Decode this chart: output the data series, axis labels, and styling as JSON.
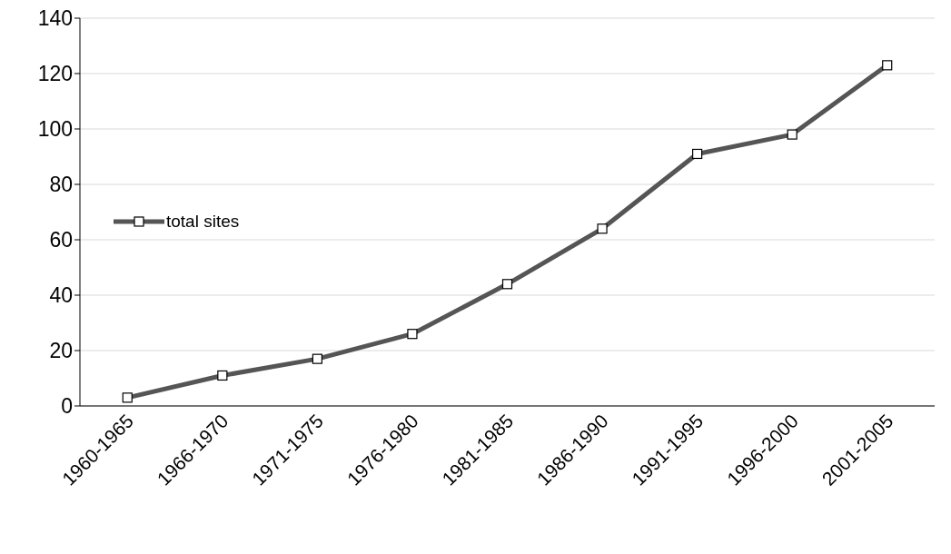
{
  "chart_data": {
    "type": "line",
    "categories": [
      "1960-1965",
      "1966-1970",
      "1971-1975",
      "1976-1980",
      "1981-1985",
      "1986-1990",
      "1991-1995",
      "1996-2000",
      "2001-2005"
    ],
    "series": [
      {
        "name": "total sites",
        "color": "#555555",
        "values": [
          3,
          11,
          17,
          26,
          44,
          64,
          91,
          98,
          123
        ]
      }
    ],
    "ylim": [
      0,
      140
    ],
    "yticks": [
      0,
      20,
      40,
      60,
      80,
      100,
      120,
      140
    ],
    "grid": "y",
    "legend": "left",
    "marker": "square",
    "line_style": "solid"
  }
}
